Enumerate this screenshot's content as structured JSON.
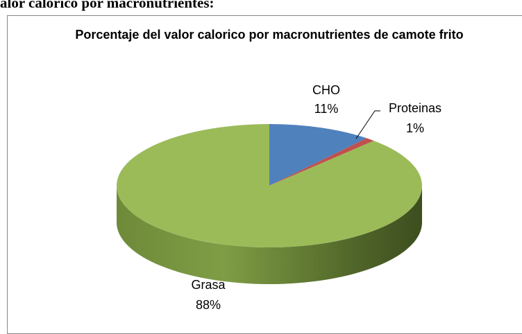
{
  "heading": "alor calorico por macronutrientes:",
  "chart_data": {
    "type": "pie",
    "title": "Porcentaje del valor calorico por macronutrientes de camote frito",
    "categories": [
      "CHO",
      "Proteinas",
      "Grasa"
    ],
    "values": [
      11,
      1,
      88
    ],
    "value_labels": [
      "11%",
      "1%",
      "88%"
    ],
    "colors": [
      "#4f81bd",
      "#c0504d",
      "#9bbb59"
    ]
  }
}
